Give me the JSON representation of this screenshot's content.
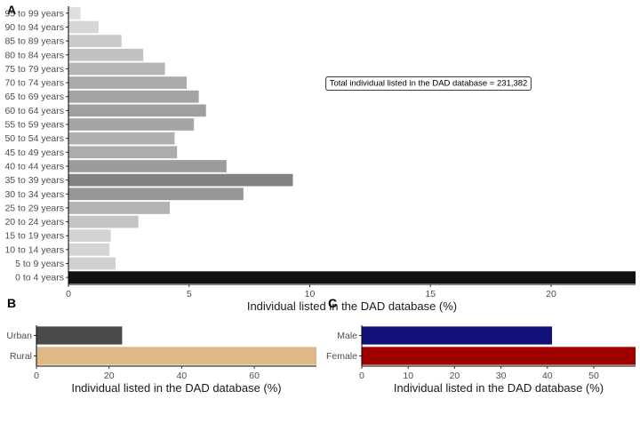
{
  "chart_data": [
    {
      "type": "bar",
      "orientation": "horizontal",
      "panel": "A",
      "categories": [
        "0 to 4 years",
        "5 to 9 years",
        "10 to 14 years",
        "15 to 19 years",
        "20 to 24 years",
        "25 to 29 years",
        "30 to 34 years",
        "35 to 39 years",
        "40 to 44 years",
        "45 to 49 years",
        "50 to 54 years",
        "55 to 59 years",
        "60 to 64 years",
        "65 to 69 years",
        "70 to 74 years",
        "75 to 79 years",
        "80 to 84 years",
        "85 to 89 years",
        "90 to 94 years",
        "95 to 99 years"
      ],
      "values": [
        23.5,
        1.95,
        1.7,
        1.75,
        2.9,
        4.2,
        7.25,
        9.3,
        6.55,
        4.5,
        4.4,
        5.2,
        5.7,
        5.4,
        4.9,
        4.0,
        3.1,
        2.2,
        1.25,
        0.5
      ],
      "colors": [
        "#111111",
        "#cfcfcf",
        "#d3d3d3",
        "#d3d3d3",
        "#c4c4c4",
        "#b3b3b3",
        "#969696",
        "#828282",
        "#9c9c9c",
        "#acacac",
        "#afafaf",
        "#a5a5a5",
        "#9f9f9f",
        "#a3a3a3",
        "#aaaaaa",
        "#b6b6b6",
        "#c1c1c1",
        "#cbcbcb",
        "#d6d6d6",
        "#dedede"
      ],
      "xlabel": "Individual listed in the DAD database (%)",
      "ylabel": "",
      "xlim": [
        0,
        23.5
      ],
      "xticks": [
        0,
        5,
        10,
        15,
        20
      ],
      "annotation": "Total individual listed in the DAD database = 231,382",
      "grid": false
    },
    {
      "type": "bar",
      "orientation": "horizontal",
      "panel": "B",
      "categories": [
        "Rural",
        "Urban"
      ],
      "values": [
        77.1,
        23.6
      ],
      "colors": [
        "#deb887",
        "#4a4a4a"
      ],
      "xlabel": "Individual listed in the DAD database (%)",
      "ylabel": "",
      "xlim": [
        0,
        77.1
      ],
      "xticks": [
        0,
        20,
        40,
        60
      ],
      "grid": false
    },
    {
      "type": "bar",
      "orientation": "horizontal",
      "panel": "C",
      "categories": [
        "Female",
        "Male"
      ],
      "values": [
        59.0,
        41.0
      ],
      "colors": [
        "#a00000",
        "#111177"
      ],
      "xlabel": "Individual listed in the DAD database (%)",
      "ylabel": "",
      "xlim": [
        0,
        59.0
      ],
      "xticks": [
        0,
        10,
        20,
        30,
        40,
        50
      ],
      "grid": false
    }
  ]
}
